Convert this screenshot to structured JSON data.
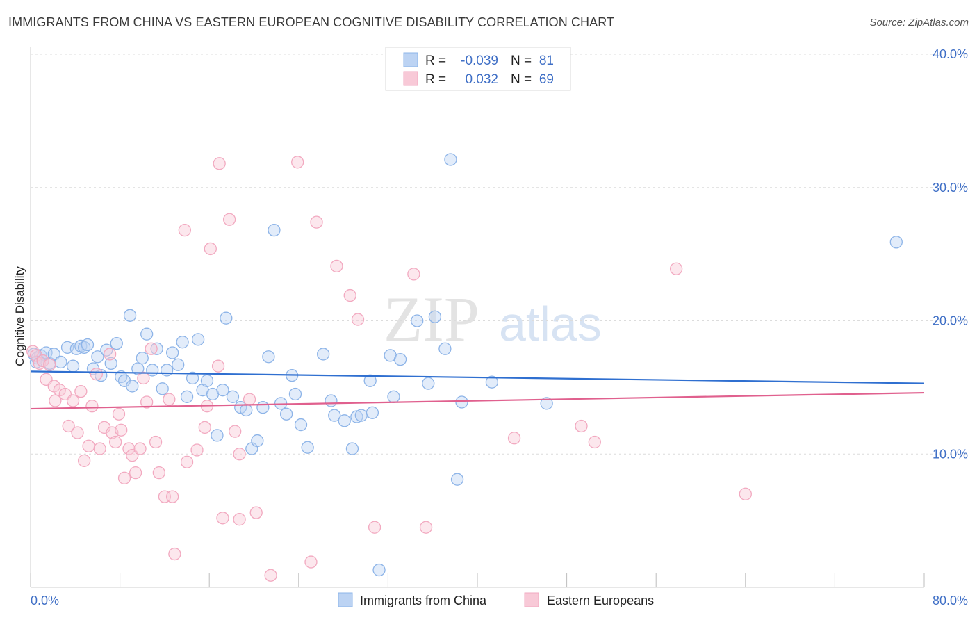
{
  "title": "IMMIGRANTS FROM CHINA VS EASTERN EUROPEAN COGNITIVE DISABILITY CORRELATION CHART",
  "source": "Source: ZipAtlas.com",
  "watermark": {
    "zip": "ZIP",
    "atlas": "atlas"
  },
  "chart_data": {
    "type": "scatter",
    "xlabel": "",
    "ylabel": "Cognitive Disability",
    "xlim": [
      0,
      80
    ],
    "ylim": [
      0,
      40
    ],
    "x_tick_labels": [
      "0.0%",
      "80.0%"
    ],
    "y_ticks": [
      10,
      20,
      30,
      40
    ],
    "y_tick_labels": [
      "10.0%",
      "20.0%",
      "30.0%",
      "40.0%"
    ],
    "grid": true,
    "legend": {
      "position": "top-center",
      "rows": [
        {
          "r_label": "R =",
          "r_value": "-0.039",
          "n_label": "N =",
          "n_value": "81"
        },
        {
          "r_label": "R =",
          "r_value": "0.032",
          "n_label": "N =",
          "n_value": "69"
        }
      ]
    },
    "series": [
      {
        "name": "Immigrants from China",
        "color": "#8db4e8",
        "line_color": "#2f6fd0",
        "trend": {
          "x": [
            0,
            80
          ],
          "y": [
            16.2,
            15.3
          ]
        },
        "points": [
          [
            0.3,
            17.5
          ],
          [
            0.6,
            17.2
          ],
          [
            0.9,
            17.4
          ],
          [
            1.1,
            17.0
          ],
          [
            1.4,
            17.6
          ],
          [
            1.7,
            16.8
          ],
          [
            2.1,
            17.5
          ],
          [
            2.7,
            16.9
          ],
          [
            3.3,
            18.0
          ],
          [
            3.8,
            16.6
          ],
          [
            4.1,
            17.9
          ],
          [
            4.5,
            18.1
          ],
          [
            4.8,
            18.0
          ],
          [
            5.1,
            18.2
          ],
          [
            5.6,
            16.4
          ],
          [
            6.0,
            17.3
          ],
          [
            6.3,
            15.9
          ],
          [
            6.8,
            17.8
          ],
          [
            7.2,
            16.8
          ],
          [
            7.7,
            18.3
          ],
          [
            8.1,
            15.8
          ],
          [
            8.4,
            15.5
          ],
          [
            8.9,
            20.4
          ],
          [
            9.1,
            15.1
          ],
          [
            9.6,
            16.4
          ],
          [
            10.0,
            17.2
          ],
          [
            10.4,
            19.0
          ],
          [
            10.9,
            16.3
          ],
          [
            11.3,
            17.9
          ],
          [
            11.8,
            14.9
          ],
          [
            12.2,
            16.3
          ],
          [
            12.7,
            17.6
          ],
          [
            13.2,
            16.7
          ],
          [
            13.6,
            18.4
          ],
          [
            14.0,
            14.3
          ],
          [
            14.5,
            15.7
          ],
          [
            15.0,
            18.6
          ],
          [
            15.4,
            14.8
          ],
          [
            15.8,
            15.5
          ],
          [
            16.3,
            14.5
          ],
          [
            16.7,
            11.4
          ],
          [
            17.2,
            14.8
          ],
          [
            17.5,
            20.2
          ],
          [
            18.1,
            14.3
          ],
          [
            18.8,
            13.5
          ],
          [
            19.3,
            13.3
          ],
          [
            19.8,
            10.4
          ],
          [
            20.3,
            11.0
          ],
          [
            20.8,
            13.5
          ],
          [
            21.3,
            17.3
          ],
          [
            21.8,
            26.8
          ],
          [
            22.4,
            13.8
          ],
          [
            22.9,
            13.0
          ],
          [
            23.4,
            15.9
          ],
          [
            23.7,
            14.5
          ],
          [
            24.2,
            12.2
          ],
          [
            24.8,
            10.5
          ],
          [
            26.2,
            17.5
          ],
          [
            26.9,
            14.0
          ],
          [
            27.2,
            12.9
          ],
          [
            28.1,
            12.5
          ],
          [
            28.8,
            10.4
          ],
          [
            29.2,
            12.8
          ],
          [
            29.6,
            12.9
          ],
          [
            30.4,
            15.5
          ],
          [
            30.6,
            13.1
          ],
          [
            31.2,
            1.3
          ],
          [
            32.2,
            17.4
          ],
          [
            32.5,
            14.3
          ],
          [
            33.1,
            17.1
          ],
          [
            34.6,
            20.0
          ],
          [
            35.6,
            15.3
          ],
          [
            36.2,
            20.3
          ],
          [
            37.1,
            17.9
          ],
          [
            37.6,
            32.1
          ],
          [
            38.2,
            8.1
          ],
          [
            38.6,
            13.9
          ],
          [
            41.3,
            15.4
          ],
          [
            46.2,
            13.8
          ],
          [
            77.5,
            25.9
          ],
          [
            0.5,
            16.9
          ]
        ]
      },
      {
        "name": "Eastern Europeans",
        "color": "#f2a9c0",
        "line_color": "#e0608e",
        "trend": {
          "x": [
            0,
            80
          ],
          "y": [
            13.4,
            14.6
          ]
        },
        "points": [
          [
            0.2,
            17.7
          ],
          [
            0.5,
            17.4
          ],
          [
            0.8,
            16.8
          ],
          [
            1.1,
            17.0
          ],
          [
            1.4,
            15.6
          ],
          [
            1.7,
            16.7
          ],
          [
            2.1,
            15.1
          ],
          [
            2.2,
            14.0
          ],
          [
            2.6,
            14.8
          ],
          [
            3.1,
            14.5
          ],
          [
            3.4,
            12.1
          ],
          [
            3.8,
            14.0
          ],
          [
            4.2,
            11.6
          ],
          [
            4.5,
            14.7
          ],
          [
            4.8,
            9.5
          ],
          [
            5.2,
            10.6
          ],
          [
            5.5,
            13.6
          ],
          [
            5.9,
            16.0
          ],
          [
            6.2,
            10.4
          ],
          [
            6.6,
            12.0
          ],
          [
            7.1,
            17.5
          ],
          [
            7.3,
            11.6
          ],
          [
            7.6,
            10.9
          ],
          [
            7.9,
            13.0
          ],
          [
            8.1,
            11.8
          ],
          [
            8.4,
            8.2
          ],
          [
            8.8,
            10.4
          ],
          [
            9.1,
            9.9
          ],
          [
            9.4,
            8.6
          ],
          [
            9.8,
            10.4
          ],
          [
            10.1,
            15.7
          ],
          [
            10.4,
            13.9
          ],
          [
            10.8,
            17.9
          ],
          [
            11.2,
            10.9
          ],
          [
            11.5,
            8.6
          ],
          [
            12.0,
            6.8
          ],
          [
            12.4,
            14.1
          ],
          [
            12.7,
            6.8
          ],
          [
            12.9,
            2.5
          ],
          [
            13.8,
            26.8
          ],
          [
            14.0,
            9.4
          ],
          [
            14.9,
            10.3
          ],
          [
            15.8,
            13.6
          ],
          [
            15.6,
            12.0
          ],
          [
            16.1,
            25.4
          ],
          [
            16.8,
            16.6
          ],
          [
            16.9,
            31.8
          ],
          [
            17.2,
            5.2
          ],
          [
            17.8,
            27.6
          ],
          [
            18.3,
            11.7
          ],
          [
            18.7,
            10.0
          ],
          [
            18.7,
            5.1
          ],
          [
            19.6,
            14.1
          ],
          [
            20.2,
            5.6
          ],
          [
            21.5,
            0.9
          ],
          [
            23.9,
            31.9
          ],
          [
            25.1,
            1.9
          ],
          [
            25.6,
            27.4
          ],
          [
            27.4,
            24.1
          ],
          [
            28.6,
            21.9
          ],
          [
            29.3,
            20.1
          ],
          [
            30.8,
            4.5
          ],
          [
            34.3,
            23.5
          ],
          [
            35.4,
            4.5
          ],
          [
            43.3,
            11.2
          ],
          [
            49.3,
            12.1
          ],
          [
            50.5,
            10.9
          ],
          [
            57.8,
            23.9
          ],
          [
            64.0,
            7.0
          ]
        ]
      }
    ]
  }
}
